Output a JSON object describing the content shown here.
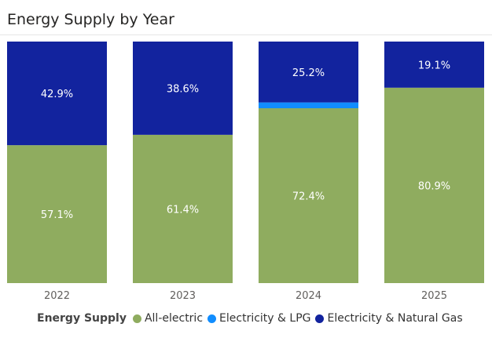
{
  "chart_data": {
    "type": "bar",
    "stacked": true,
    "normalized": true,
    "title": "Energy Supply by Year",
    "categories": [
      "2022",
      "2023",
      "2024",
      "2025"
    ],
    "series": [
      {
        "name": "All-electric",
        "color": "#8fac5f",
        "values": [
          57.1,
          61.4,
          72.4,
          80.9
        ],
        "labels": [
          "57.1%",
          "61.4%",
          "72.4%",
          "80.9%"
        ]
      },
      {
        "name": "Electricity & LPG",
        "color": "#118dff",
        "values": [
          0,
          0,
          2.4,
          0
        ],
        "labels": [
          "",
          "",
          "",
          ""
        ]
      },
      {
        "name": "Electricity & Natural Gas",
        "color": "#12239e",
        "values": [
          42.9,
          38.6,
          25.2,
          19.1
        ],
        "labels": [
          "42.9%",
          "38.6%",
          "25.2%",
          "19.1%"
        ]
      }
    ],
    "legend": {
      "title": "Energy Supply",
      "placement": "bottom"
    },
    "ylim": [
      0,
      100
    ],
    "grid": false
  }
}
